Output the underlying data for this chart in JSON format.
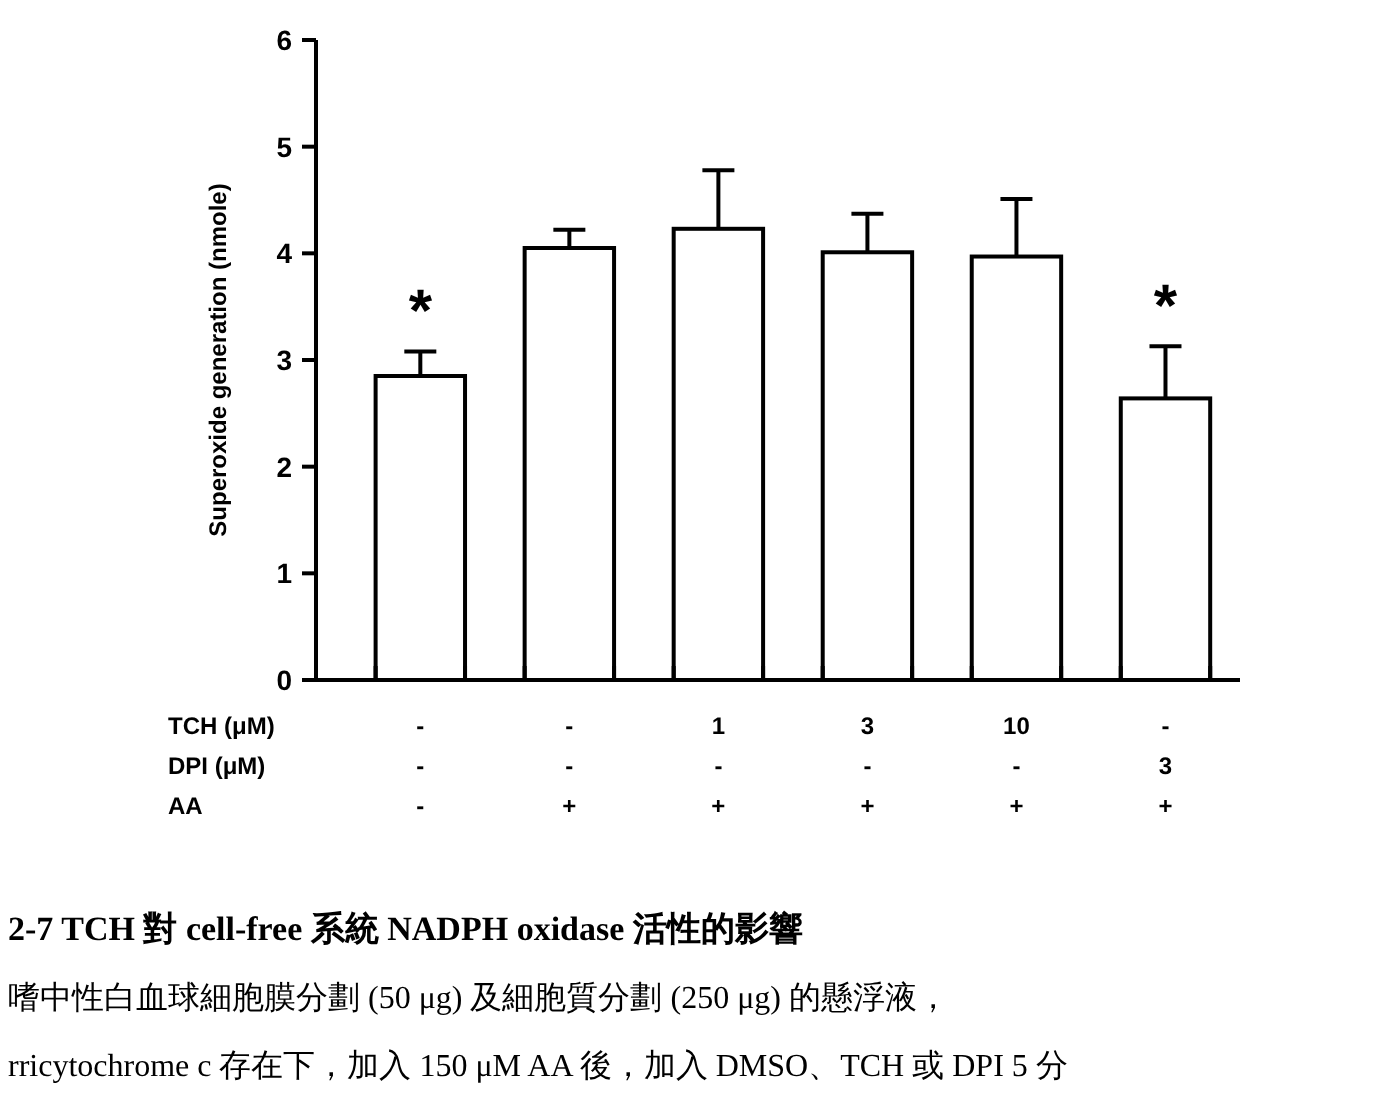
{
  "chart_data": {
    "type": "bar",
    "ylabel": "Superoxide generation (nmole)",
    "xlabel": "TCH (μM)\nDPI (μM)\nAA",
    "categories": [
      "-\n-\n-",
      "-\n-\n+",
      "1\n-\n+",
      "3\n-\n+",
      "10\n-\n+",
      "-\n3\n+"
    ],
    "values": [
      2.85,
      4.05,
      4.23,
      4.01,
      3.97,
      2.64
    ],
    "errors": [
      [
        2.85,
        3.08
      ],
      [
        4.05,
        4.22
      ],
      [
        4.23,
        4.78
      ],
      [
        4.01,
        4.37
      ],
      [
        3.97,
        4.51
      ],
      [
        2.64,
        3.13
      ]
    ],
    "color": "#ffffff",
    "ylim": [
      0,
      6
    ],
    "yticks": [
      0,
      1,
      2,
      3,
      4,
      5,
      6
    ],
    "grid": false,
    "annotations": [
      {
        "text": "*",
        "x": "-\n-\n-",
        "y": 3.08
      },
      {
        "text": "*",
        "x": "-\n3\n+",
        "y": 3.13
      },
      "2-7    TCH 對 cell-free 系統 NADPH oxidase 活性的影響",
      "嗜中性白血球細胞膜分劃 (50 μg) 及細胞質分劃 (250 μg) 的懸浮液，",
      "rricytochrome c 存在下，加入 150 μM AA 後，加入 DMSO、TCH 或 DPI 5 分"
    ]
  }
}
